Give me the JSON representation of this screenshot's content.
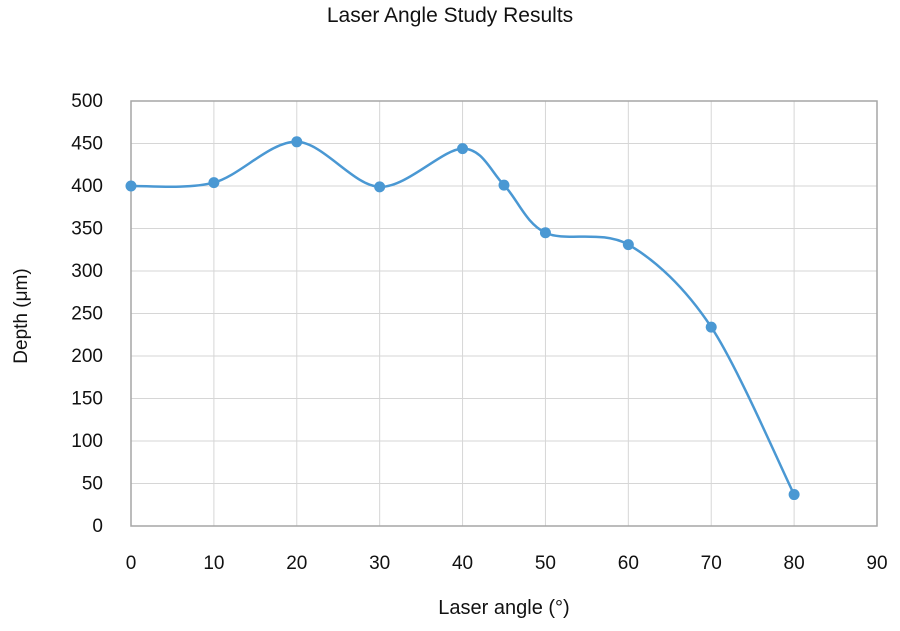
{
  "chart_data": {
    "type": "line",
    "title": "Laser Angle Study Results",
    "xlabel": "Laser angle (°)",
    "ylabel": "Depth (μm)",
    "xlim": [
      0,
      90
    ],
    "ylim": [
      0,
      500
    ],
    "x_ticks": [
      0,
      10,
      20,
      30,
      40,
      50,
      60,
      70,
      80,
      90
    ],
    "y_ticks": [
      0,
      50,
      100,
      150,
      200,
      250,
      300,
      350,
      400,
      450,
      500
    ],
    "grid": true,
    "smooth": true,
    "color": "#4a98d3",
    "series": [
      {
        "x": [
          0,
          10,
          20,
          30,
          40,
          45,
          50,
          60,
          70,
          80
        ],
        "y": [
          400,
          404,
          452,
          399,
          444,
          401,
          345,
          331,
          234,
          37
        ]
      }
    ]
  }
}
